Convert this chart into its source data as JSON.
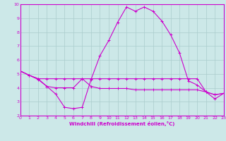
{
  "xlabel": "Windchill (Refroidissement éolien,°C)",
  "xlim": [
    0,
    23
  ],
  "ylim": [
    2,
    10
  ],
  "xticks": [
    0,
    1,
    2,
    3,
    4,
    5,
    6,
    7,
    8,
    9,
    10,
    11,
    12,
    13,
    14,
    15,
    16,
    17,
    18,
    19,
    20,
    21,
    22,
    23
  ],
  "yticks": [
    2,
    3,
    4,
    5,
    6,
    7,
    8,
    9,
    10
  ],
  "bg_color": "#cce8e8",
  "grid_color": "#aacccc",
  "line_color": "#cc00cc",
  "line1_x": [
    0,
    1,
    2,
    3,
    4,
    5,
    6,
    7,
    8,
    9,
    10,
    11,
    12,
    13,
    14,
    15,
    16,
    17,
    18,
    19,
    20,
    21,
    22,
    23
  ],
  "line1_y": [
    5.2,
    4.9,
    4.6,
    4.1,
    3.55,
    2.6,
    2.5,
    2.6,
    4.6,
    6.3,
    7.4,
    8.7,
    9.8,
    9.5,
    9.8,
    9.5,
    8.8,
    7.8,
    6.5,
    4.5,
    4.2,
    3.7,
    3.2,
    3.6
  ],
  "line2_x": [
    0,
    1,
    2,
    3,
    4,
    5,
    6,
    7,
    8,
    9,
    10,
    11,
    12,
    13,
    14,
    15,
    16,
    17,
    18,
    19,
    20,
    21,
    22,
    23
  ],
  "line2_y": [
    5.2,
    4.9,
    4.65,
    4.65,
    4.65,
    4.65,
    4.65,
    4.65,
    4.65,
    4.65,
    4.65,
    4.65,
    4.65,
    4.65,
    4.65,
    4.65,
    4.65,
    4.65,
    4.65,
    4.65,
    4.65,
    3.7,
    3.5,
    3.6
  ],
  "line3_x": [
    0,
    1,
    2,
    3,
    4,
    5,
    6,
    7,
    8,
    9,
    10,
    11,
    12,
    13,
    14,
    15,
    16,
    17,
    18,
    19,
    20,
    21,
    22,
    23
  ],
  "line3_y": [
    5.2,
    4.9,
    4.65,
    4.1,
    4.0,
    4.0,
    4.0,
    4.65,
    4.1,
    3.95,
    3.95,
    3.95,
    3.95,
    3.85,
    3.85,
    3.85,
    3.85,
    3.85,
    3.85,
    3.85,
    3.85,
    3.7,
    3.5,
    3.6
  ]
}
